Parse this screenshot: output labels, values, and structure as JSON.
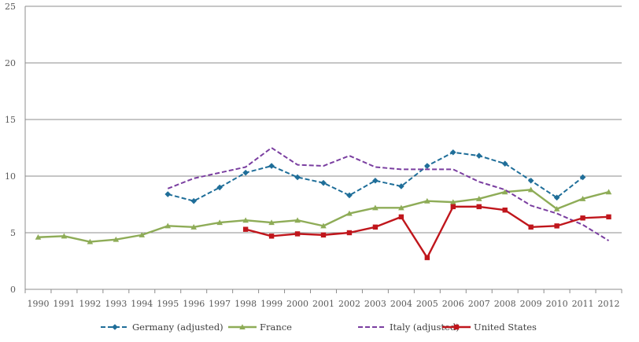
{
  "chart_data": {
    "type": "line",
    "title": "",
    "xlabel": "",
    "ylabel": "",
    "ylim": [
      0,
      25
    ],
    "yticks": [
      0,
      5,
      10,
      15,
      20,
      25
    ],
    "grid": true,
    "legend_position": "bottom",
    "categories": [
      "1990",
      "1991",
      "1992",
      "1993",
      "1994",
      "1995",
      "1996",
      "1997",
      "1998",
      "1999",
      "2000",
      "2001",
      "2002",
      "2003",
      "2004",
      "2005",
      "2006",
      "2007",
      "2008",
      "2009",
      "2010",
      "2011",
      "2012"
    ],
    "series": [
      {
        "name": "Germany (adjusted)",
        "color": "#1f6e99",
        "dash": "dashed",
        "marker": "diamond",
        "values": [
          null,
          null,
          null,
          null,
          null,
          8.4,
          7.8,
          9.0,
          10.3,
          10.9,
          9.9,
          9.4,
          8.3,
          9.6,
          9.1,
          10.9,
          12.1,
          11.8,
          11.1,
          9.6,
          8.1,
          9.9,
          null
        ]
      },
      {
        "name": "France",
        "color": "#8eac57",
        "dash": "solid",
        "marker": "triangle",
        "values": [
          4.6,
          4.7,
          4.2,
          4.4,
          4.8,
          5.6,
          5.5,
          5.9,
          6.1,
          5.9,
          6.1,
          5.6,
          6.7,
          7.2,
          7.2,
          7.8,
          7.7,
          8.0,
          8.6,
          8.8,
          7.1,
          8.0,
          8.6
        ]
      },
      {
        "name": "Italy (adjusted)",
        "color": "#7a3ea0",
        "dash": "dashed",
        "marker": "none",
        "values": [
          null,
          null,
          null,
          null,
          null,
          8.9,
          9.8,
          10.3,
          10.8,
          12.5,
          11.0,
          10.9,
          11.8,
          10.8,
          10.6,
          10.6,
          10.6,
          9.5,
          8.8,
          7.4,
          6.7,
          5.7,
          4.3
        ]
      },
      {
        "name": "United States",
        "color": "#c0161c",
        "dash": "solid",
        "marker": "square",
        "values": [
          null,
          null,
          null,
          null,
          null,
          null,
          null,
          null,
          5.3,
          4.7,
          4.9,
          4.8,
          5.0,
          5.5,
          6.4,
          2.8,
          7.3,
          7.3,
          7.0,
          5.5,
          5.6,
          6.3,
          6.4
        ]
      }
    ]
  }
}
